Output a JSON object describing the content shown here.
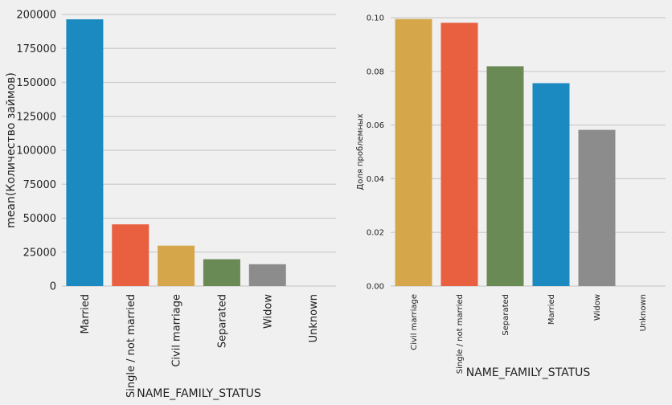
{
  "chart_data": [
    {
      "type": "bar",
      "title": "",
      "xlabel": "NAME_FAMILY_STATUS",
      "ylabel": "mean(Количество займов)",
      "categories": [
        "Married",
        "Single / not married",
        "Civil marriage",
        "Separated",
        "Widow",
        "Unknown"
      ],
      "values": [
        196432,
        45444,
        29775,
        19770,
        16088,
        2
      ],
      "ylim": [
        0,
        200000
      ],
      "yticks": [
        0,
        25000,
        50000,
        75000,
        100000,
        125000,
        150000,
        175000,
        200000
      ],
      "ytick_labels": [
        "0",
        "25000",
        "50000",
        "75000",
        "100000",
        "125000",
        "150000",
        "175000",
        "200000"
      ],
      "grid": true
    },
    {
      "type": "bar",
      "title": "",
      "xlabel": "NAME_FAMILY_STATUS",
      "ylabel": "Доля проблемных",
      "categories": [
        "Civil marriage",
        "Single / not married",
        "Separated",
        "Married",
        "Widow",
        "Unknown"
      ],
      "values": [
        0.0995,
        0.0981,
        0.0819,
        0.0756,
        0.0582,
        0.0
      ],
      "ylim": [
        0,
        0.1
      ],
      "yticks": [
        0,
        0.02,
        0.04,
        0.06,
        0.08,
        0.1
      ],
      "ytick_labels": [
        "0.00",
        "0.02",
        "0.04",
        "0.06",
        "0.08",
        "0.10"
      ],
      "grid": true
    }
  ],
  "colors": {
    "Married": "#1a8ac0",
    "Single / not married": "#e8603f",
    "Civil marriage": "#d6a74a",
    "Separated": "#6a8a55",
    "Widow": "#8c8c8c",
    "Unknown": "#8c8c8c"
  }
}
